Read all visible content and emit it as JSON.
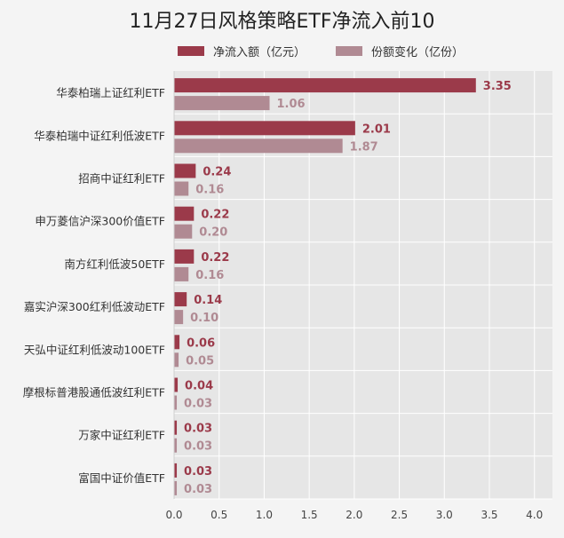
{
  "chart_data": {
    "type": "bar",
    "orientation": "horizontal",
    "title": "11月27日风格策略ETF净流入前10",
    "categories": [
      "华泰柏瑞上证红利ETF",
      "华泰柏瑞中证红利低波ETF",
      "招商中证红利ETF",
      "申万菱信沪深300价值ETF",
      "南方红利低波50ETF",
      "嘉实沪深300红利低波动ETF",
      "天弘中证红利低波动100ETF",
      "摩根标普港股通低波红利ETF",
      "万家中证红利ETF",
      "富国中证价值ETF"
    ],
    "series": [
      {
        "name": "净流入额（亿元）",
        "color": "#9b3a4a",
        "values": [
          3.35,
          2.01,
          0.24,
          0.22,
          0.22,
          0.14,
          0.06,
          0.04,
          0.03,
          0.03
        ],
        "labels": [
          "3.35",
          "2.01",
          "0.24",
          "0.22",
          "0.22",
          "0.14",
          "0.06",
          "0.04",
          "0.03",
          "0.03"
        ]
      },
      {
        "name": "份额变化（亿份）",
        "color": "#b08a93",
        "values": [
          1.06,
          1.87,
          0.16,
          0.2,
          0.16,
          0.1,
          0.05,
          0.03,
          0.03,
          0.03
        ],
        "labels": [
          "1.06",
          "1.87",
          "0.16",
          "0.20",
          "0.16",
          "0.10",
          "0.05",
          "0.03",
          "0.03",
          "0.03"
        ]
      }
    ],
    "xlim": [
      0,
      4.2
    ],
    "xticks": [
      0.0,
      0.5,
      1.0,
      1.5,
      2.0,
      2.5,
      3.0,
      3.5,
      4.0
    ],
    "xtick_labels": [
      "0.0",
      "0.5",
      "1.0",
      "1.5",
      "2.0",
      "2.5",
      "3.0",
      "3.5",
      "4.0"
    ],
    "grid": true,
    "legend_position": "top"
  }
}
